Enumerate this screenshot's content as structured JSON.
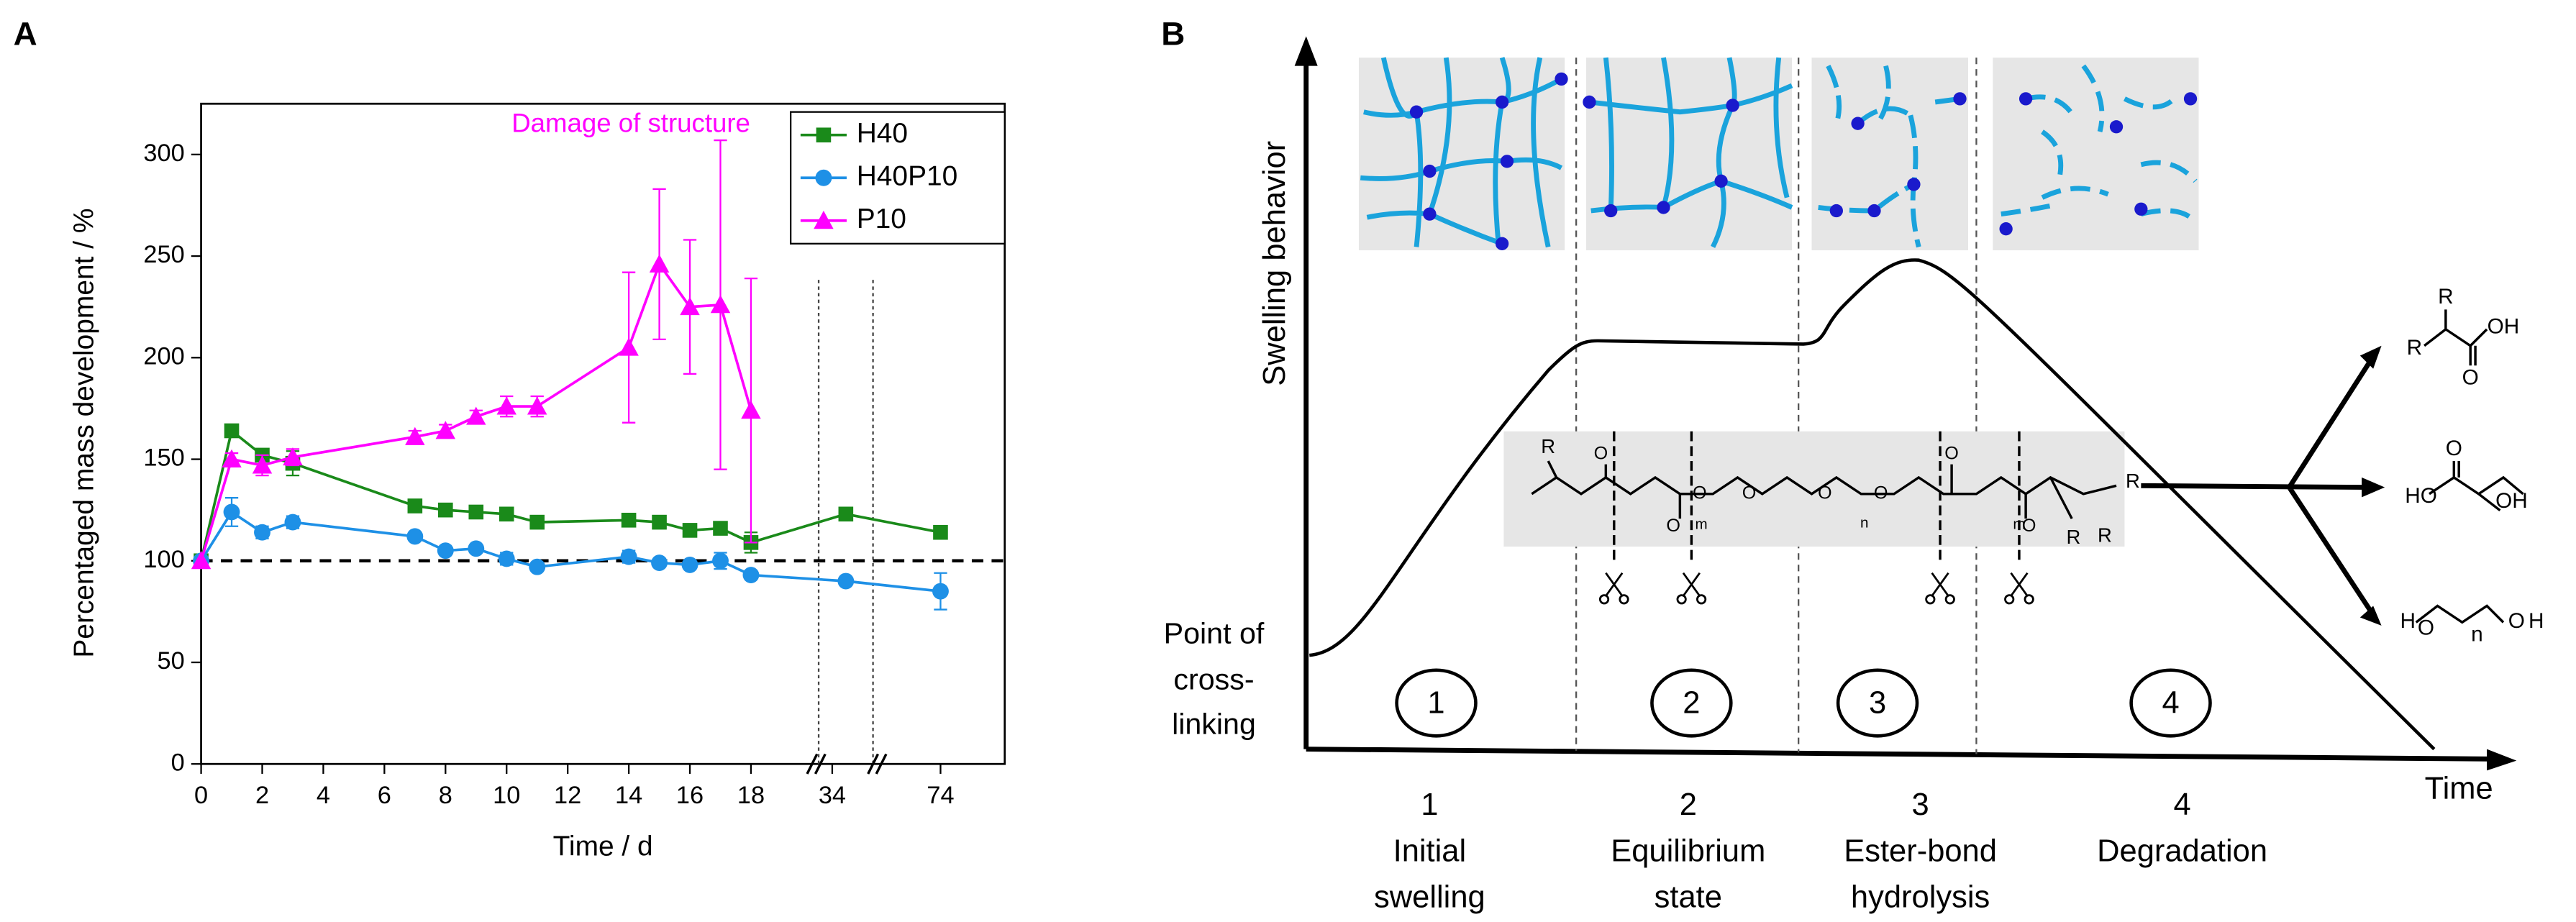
{
  "panel_a": {
    "label": "A"
  },
  "chart_data": {
    "type": "line",
    "annotation": "Damage of structure",
    "xlabel": "Time / d",
    "ylabel": "Percentaged mass development / %",
    "x": [
      0,
      1,
      2,
      3,
      7,
      8,
      9,
      10,
      11,
      14,
      15,
      16,
      17,
      18,
      35,
      74
    ],
    "xlim": [
      0,
      78
    ],
    "xbreaks": [
      [
        20,
        33
      ],
      [
        37,
        70
      ]
    ],
    "xticks": [
      0,
      2,
      4,
      6,
      8,
      10,
      12,
      14,
      16,
      18,
      34,
      74
    ],
    "ylim": [
      0,
      325
    ],
    "yticks": [
      0,
      50,
      100,
      150,
      200,
      250,
      300
    ],
    "hline": 100,
    "legend": "top-right",
    "series": [
      {
        "name": "H40",
        "color": "#1a8a1a",
        "marker": "square",
        "values": [
          100,
          164,
          152,
          148,
          127,
          125,
          124,
          123,
          119,
          120,
          119,
          115,
          116,
          109,
          123,
          114
        ],
        "errors": [
          0,
          2,
          3,
          6,
          2,
          2,
          2,
          2,
          2,
          3,
          2,
          2,
          2,
          5,
          3,
          2
        ]
      },
      {
        "name": "H40P10",
        "color": "#1e90e6",
        "marker": "circle",
        "values": [
          100,
          124,
          114,
          119,
          112,
          105,
          106,
          101,
          97,
          102,
          99,
          98,
          100,
          93,
          90,
          85
        ],
        "errors": [
          0,
          7,
          3,
          3,
          2,
          2,
          2,
          3,
          2,
          3,
          2,
          2,
          4,
          2,
          2,
          9
        ]
      },
      {
        "name": "P10",
        "color": "#ff00ff",
        "marker": "triangle",
        "values": [
          100,
          150,
          147,
          151,
          161,
          164,
          171,
          176,
          176,
          205,
          246,
          225,
          226,
          174,
          null,
          null
        ],
        "errors": [
          0,
          3,
          5,
          4,
          3,
          3,
          3,
          5,
          5,
          37,
          37,
          33,
          81,
          65,
          null,
          null
        ]
      }
    ]
  },
  "panel_b": {
    "label": "B",
    "y_axis": "Swelling behavior",
    "x_axis": "Time",
    "origin_label": [
      "Point of",
      "cross-",
      "linking"
    ],
    "stage_numbers": [
      "1",
      "2",
      "3",
      "4"
    ],
    "stages": [
      {
        "number": "1",
        "name": [
          "Initial",
          "swelling"
        ]
      },
      {
        "number": "2",
        "name": [
          "Equilibrium",
          "state"
        ]
      },
      {
        "number": "3",
        "name": [
          "Ester-bond",
          "hydrolysis"
        ]
      },
      {
        "number": "4",
        "name": [
          "Degradation"
        ]
      }
    ],
    "strip_labels": [
      "R",
      "R",
      "O",
      "O",
      "m",
      "O",
      "O",
      "O",
      "n",
      "O",
      "O",
      "m",
      "O",
      "R",
      "R"
    ],
    "product_labels": [
      "R",
      "R",
      "OH",
      "O",
      "O",
      "HO",
      "OH",
      "H",
      "O",
      "n",
      "O",
      "H"
    ]
  }
}
